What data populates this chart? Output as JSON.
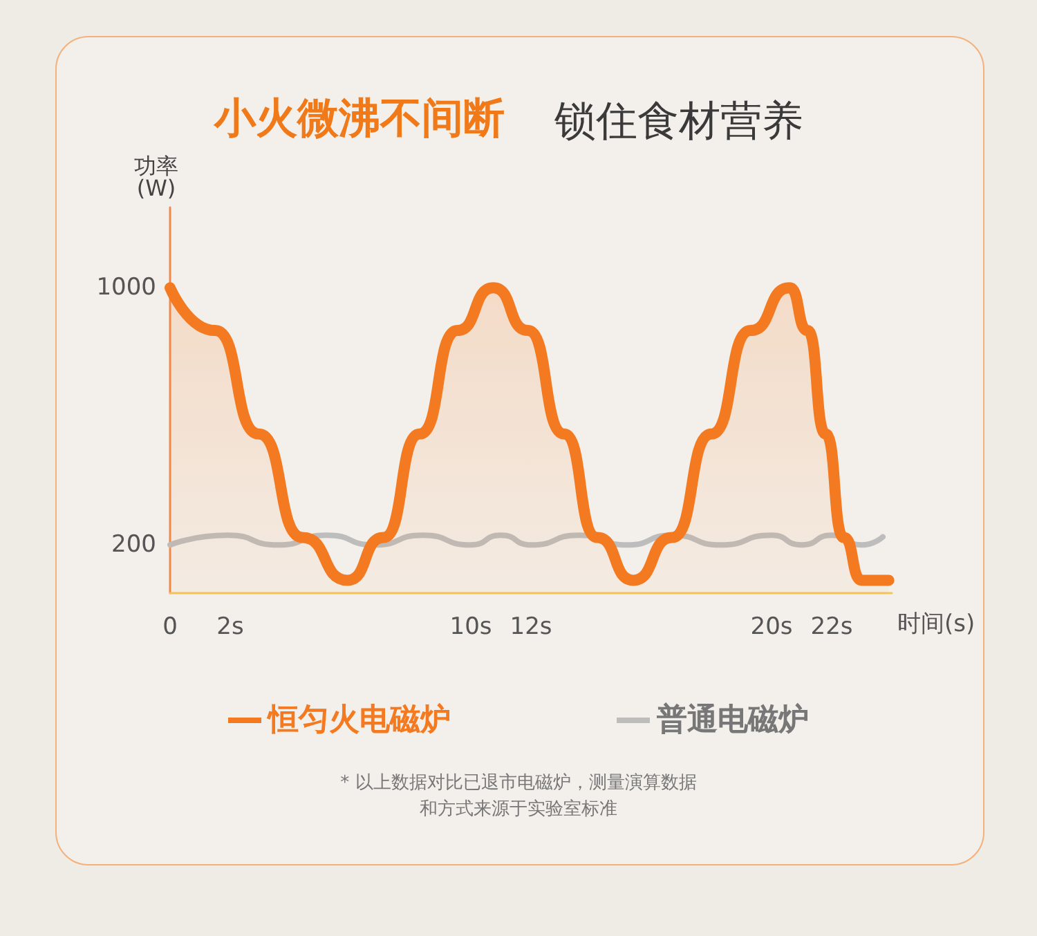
{
  "chart_data": {
    "type": "line",
    "title": "小火微沸不间断",
    "subtitle": "锁住食材营养",
    "ylabel": "功率\n(W)",
    "xlabel": "时间(s)",
    "xlim": [
      0,
      24
    ],
    "xticks": [
      0,
      {
        "value": 2,
        "label": "2s"
      },
      {
        "value": 10,
        "label": "10s"
      },
      {
        "value": 12,
        "label": "12s"
      },
      {
        "value": 20,
        "label": "20s"
      },
      {
        "value": 22,
        "label": "22s"
      }
    ],
    "ylim": [
      50,
      1250
    ],
    "yticks": [
      200,
      1000
    ],
    "legend": "bottom",
    "series": [
      {
        "name": "恒匀火电磁炉",
        "type": "area",
        "color": "#f47a22",
        "x": [
          0,
          1.5,
          2.95,
          4.4,
          5.9,
          7.1,
          8.3,
          9.55,
          10.75,
          11.9,
          13.1,
          14.2,
          15.4,
          16.7,
          18.0,
          19.3,
          20.6,
          21.2,
          21.8,
          22.4,
          23.0,
          23.9
        ],
        "values": [
          1000,
          867,
          545,
          223,
          90,
          223,
          545,
          867,
          1000,
          867,
          545,
          223,
          90,
          223,
          545,
          867,
          1000,
          867,
          545,
          223,
          90,
          90
        ]
      },
      {
        "name": "普通电磁炉",
        "color": "#bdbdbd",
        "x": [
          0,
          1.9,
          3.6,
          5.2,
          6.8,
          8.4,
          10.0,
          11.0,
          12.0,
          13.6,
          15.2,
          16.7,
          18.3,
          20.0,
          21.0,
          22.0,
          23.0,
          23.7
        ],
        "values": [
          200,
          230,
          200,
          230,
          200,
          230,
          200,
          230,
          200,
          230,
          200,
          230,
          200,
          230,
          200,
          230,
          200,
          225
        ]
      }
    ],
    "annotations": [
      "* 以上数据对比已退市电磁炉，测量演算数据",
      "和方式来源于实验室标准"
    ]
  }
}
